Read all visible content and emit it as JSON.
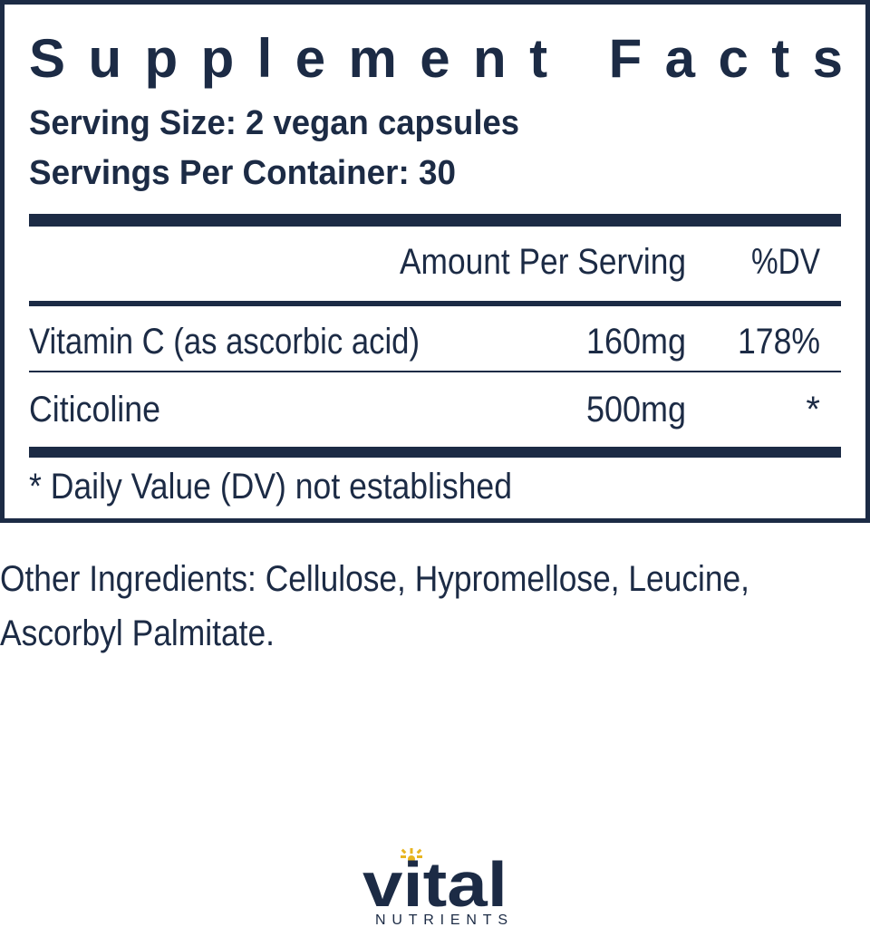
{
  "header": {
    "title": "Supplement Facts",
    "serving_size": "Serving Size: 2 vegan capsules",
    "servings_per_container": "Servings Per Container: 30"
  },
  "table": {
    "columns": [
      "Amount Per Serving",
      "%DV"
    ],
    "rows": [
      [
        "Vitamin C (as ascorbic acid)",
        "160mg",
        "178%"
      ],
      [
        "Citicoline",
        "500mg",
        "*"
      ]
    ],
    "footnote": "* Daily Value (DV) not established"
  },
  "other_ingredients": [
    "Other Ingredients: Cellulose, Hypromellose, Leucine,",
    "Ascorbyl Palmitate."
  ],
  "logo": {
    "name": "vital",
    "tagline": "NUTRIENTS"
  }
}
